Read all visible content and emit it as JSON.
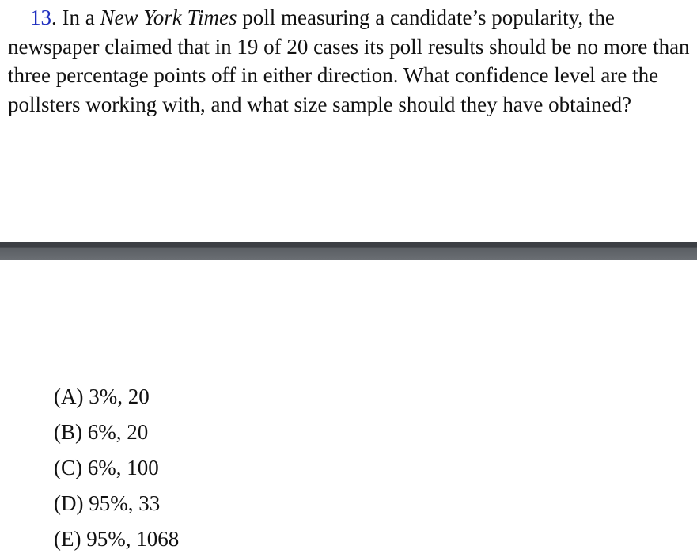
{
  "question": {
    "number": "13",
    "text_before_title": ". In a ",
    "publication": "New York Times",
    "text_after_title": " poll measuring a candidate’s popularity, the newspaper claimed that in 19 of 20 cases its poll results should be no more than three percentage points off in either direction. What confidence level are the pollsters working with, and what size sample should they have obtained?"
  },
  "choices": [
    "(A) 3%, 20",
    "(B) 6%, 20",
    "(C) 6%, 100",
    "(D) 95%, 33",
    "(E) 95%, 1068"
  ],
  "colors": {
    "question_number": "#1f2fbf",
    "divider": "#4a4d52",
    "text": "#111111"
  }
}
